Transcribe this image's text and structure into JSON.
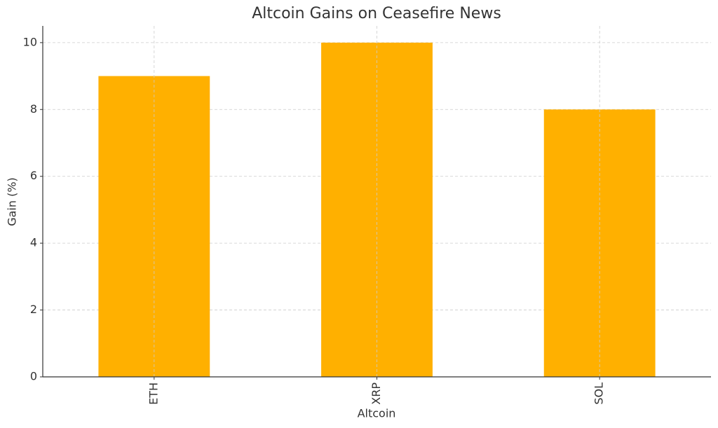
{
  "chart_data": {
    "type": "bar",
    "title": "Altcoin Gains on Ceasefire News",
    "x_label": "Altcoin",
    "y_label": "Gain (%)",
    "categories": [
      "ETH",
      "XRP",
      "SOL"
    ],
    "values": [
      9,
      10,
      8
    ],
    "color": "#ffb000",
    "ylim": [
      0,
      10.5
    ],
    "yticks": [
      0,
      2,
      4,
      6,
      8,
      10
    ],
    "grid": true
  }
}
